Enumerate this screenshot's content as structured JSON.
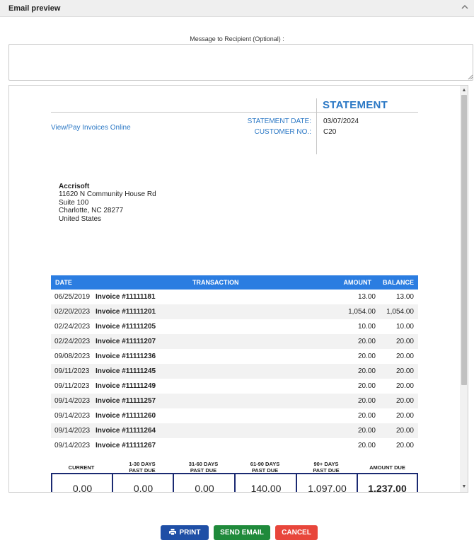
{
  "panel": {
    "title": "Email preview",
    "collapse_icon": "chevron-up-icon"
  },
  "message": {
    "label": "Message to Recipient (Optional) :",
    "value": "",
    "placeholder": ""
  },
  "statement": {
    "title": "STATEMENT",
    "pay_link": "View/Pay Invoices Online",
    "date_label": "STATEMENT DATE:",
    "date_value": "03/07/2024",
    "customer_label": "CUSTOMER NO.:",
    "customer_value": "C20",
    "address": [
      "Accrisoft",
      "11620 N Community House Rd",
      "Suite 100",
      "Charlotte, NC 28277",
      "United States"
    ],
    "table": {
      "headers": {
        "date": "DATE",
        "transaction": "TRANSACTION",
        "amount": "AMOUNT",
        "balance": "BALANCE"
      },
      "rows": [
        {
          "date": "06/25/2019",
          "transaction": "Invoice #11111181",
          "amount": "13.00",
          "balance": "13.00"
        },
        {
          "date": "02/20/2023",
          "transaction": "Invoice #11111201",
          "amount": "1,054.00",
          "balance": "1,054.00"
        },
        {
          "date": "02/24/2023",
          "transaction": "Invoice #11111205",
          "amount": "10.00",
          "balance": "10.00"
        },
        {
          "date": "02/24/2023",
          "transaction": "Invoice #11111207",
          "amount": "20.00",
          "balance": "20.00"
        },
        {
          "date": "09/08/2023",
          "transaction": "Invoice #11111236",
          "amount": "20.00",
          "balance": "20.00"
        },
        {
          "date": "09/11/2023",
          "transaction": "Invoice #11111245",
          "amount": "20.00",
          "balance": "20.00"
        },
        {
          "date": "09/11/2023",
          "transaction": "Invoice #11111249",
          "amount": "20.00",
          "balance": "20.00"
        },
        {
          "date": "09/14/2023",
          "transaction": "Invoice #11111257",
          "amount": "20.00",
          "balance": "20.00"
        },
        {
          "date": "09/14/2023",
          "transaction": "Invoice #11111260",
          "amount": "20.00",
          "balance": "20.00"
        },
        {
          "date": "09/14/2023",
          "transaction": "Invoice #11111264",
          "amount": "20.00",
          "balance": "20.00"
        },
        {
          "date": "09/14/2023",
          "transaction": "Invoice #11111267",
          "amount": "20.00",
          "balance": "20.00"
        }
      ]
    },
    "aging": {
      "labels": [
        "CURRENT",
        "1-30 DAYS\nPAST DUE",
        "31-60 DAYS\nPAST DUE",
        "61-90 DAYS\nPAST DUE",
        "90+ DAYS\nPAST DUE",
        "AMOUNT DUE"
      ],
      "values": [
        "0.00",
        "0.00",
        "0.00",
        "140.00",
        "1,097.00",
        "1,237.00"
      ]
    }
  },
  "buttons": {
    "print": "PRINT",
    "send": "SEND EMAIL",
    "cancel": "CANCEL"
  },
  "colors": {
    "accent": "#2b78c5",
    "table_header": "#2b7de1",
    "aging_border": "#1b2a72",
    "print": "#1f4fa6",
    "send": "#1f8a3b",
    "cancel": "#e8463b"
  }
}
